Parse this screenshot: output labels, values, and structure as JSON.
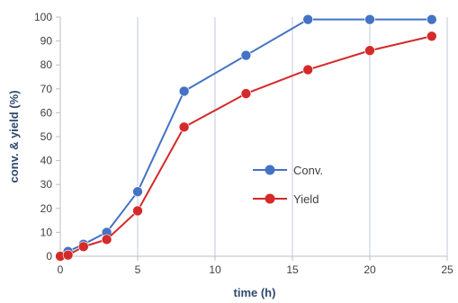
{
  "chart_data": {
    "type": "line",
    "xlabel": "time (h)",
    "ylabel": "conv. & yield (%)",
    "xlim": [
      0,
      25
    ],
    "ylim": [
      0,
      100
    ],
    "x_ticks": [
      "0",
      "5",
      "10",
      "15",
      "20",
      "25"
    ],
    "y_ticks": [
      "0",
      "10",
      "20",
      "30",
      "40",
      "50",
      "60",
      "70",
      "80",
      "90",
      "100"
    ],
    "grid": "vertical",
    "legend_position": "center-right",
    "series": [
      {
        "name": "Conv.",
        "color": "#4472c4",
        "x": [
          0,
          0.5,
          1.5,
          3,
          5,
          8,
          12,
          16,
          20,
          24
        ],
        "y": [
          0,
          2,
          5,
          10,
          27,
          69,
          84,
          99,
          99,
          99
        ]
      },
      {
        "name": "Yield",
        "color": "#d42a2a",
        "x": [
          0,
          0.5,
          1.5,
          3,
          5,
          8,
          12,
          16,
          20,
          24
        ],
        "y": [
          0,
          0.5,
          4,
          7,
          19,
          54,
          68,
          78,
          86,
          92
        ]
      }
    ]
  }
}
